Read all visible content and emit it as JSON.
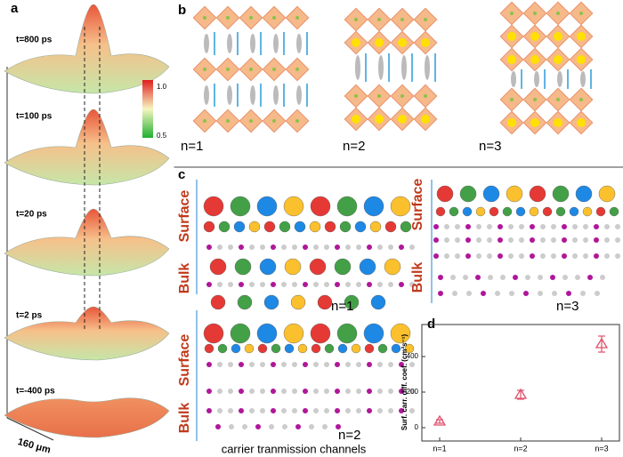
{
  "panel_a": {
    "label": "a",
    "times": [
      "t=800 ps",
      "t=100 ps",
      "t=20 ps",
      "t=2 ps",
      "t=-400 ps"
    ],
    "colorbar_ticks": [
      "1.0",
      "0.5"
    ],
    "scale": "160 μm"
  },
  "panel_b": {
    "label": "b",
    "structures": [
      "n=1",
      "n=2",
      "n=3"
    ]
  },
  "panel_c": {
    "label": "c",
    "regions": [
      "Surface",
      "Bulk"
    ],
    "structures": [
      "n=1",
      "n=2",
      "n=3"
    ],
    "caption": "carrier tranmission channels"
  },
  "chart_data": {
    "type": "scatter",
    "label": "d",
    "y_label": "Surf. carr. diff. coef. (cm²s⁻¹)",
    "categories": [
      "n=1",
      "n=2",
      "n=3"
    ],
    "values": [
      35,
      185,
      470
    ],
    "errors": [
      10,
      25,
      45
    ],
    "color": "#e0506a",
    "ylim": [
      -75,
      580
    ],
    "yticks": [
      0,
      200,
      400
    ]
  }
}
